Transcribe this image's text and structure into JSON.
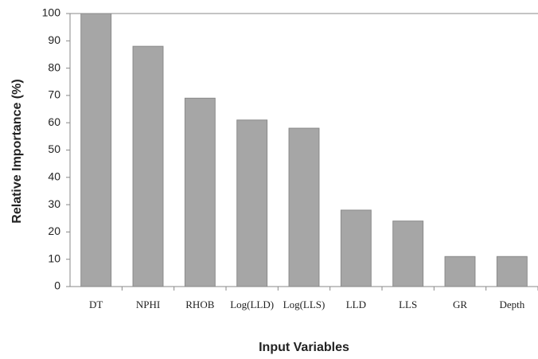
{
  "chart_data": {
    "type": "bar",
    "x_label": "Input Variables",
    "y_label": "Relative Importance (%)",
    "categories": [
      "DT",
      "NPHI",
      "RHOB",
      "Log(LLD)",
      "Log(LLS)",
      "LLD",
      "LLS",
      "GR",
      "Depth"
    ],
    "values": [
      100,
      88,
      69,
      61,
      58,
      28,
      24,
      11,
      11
    ],
    "color": "#a6a6a6",
    "ylim": [
      0,
      100
    ],
    "yticks": [
      0,
      10,
      20,
      30,
      40,
      50,
      60,
      70,
      80,
      90,
      100
    ],
    "grid": false
  }
}
